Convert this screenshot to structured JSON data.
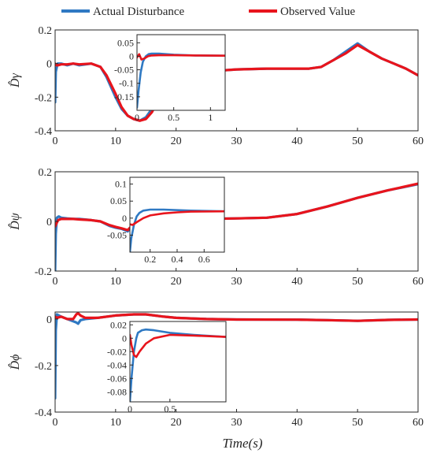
{
  "legend": [
    {
      "label": "Actual Disturbance",
      "color": "#2f79c3"
    },
    {
      "label": "Observed Value",
      "color": "#e8141c"
    }
  ],
  "xlabel": "Time(s)",
  "chart_data": [
    {
      "type": "line",
      "ylabel": "D̂γ",
      "xlim": [
        0,
        60
      ],
      "ylim": [
        -0.4,
        0.2
      ],
      "xticks": [
        0,
        10,
        20,
        30,
        40,
        50,
        60
      ],
      "yticks": [
        -0.4,
        -0.2,
        0,
        0.2
      ],
      "ytick_labels": [
        "-0.4",
        "-0.2",
        "0",
        "0.2"
      ],
      "series": [
        {
          "name": "Actual Disturbance",
          "color": "#2f79c3",
          "x": [
            0,
            0.1,
            0.4,
            1,
            2,
            3,
            4,
            6,
            7.5,
            8.5,
            10,
            11,
            12,
            13,
            14,
            15,
            16,
            17,
            18,
            20,
            22,
            25,
            28,
            30,
            35,
            40,
            42,
            44,
            46,
            48,
            50,
            52,
            54,
            56,
            58,
            60
          ],
          "y": [
            -0.23,
            -0.05,
            0,
            0,
            -0.01,
            0.0,
            -0.01,
            0.0,
            -0.02,
            -0.08,
            -0.2,
            -0.27,
            -0.31,
            -0.33,
            -0.34,
            -0.32,
            -0.27,
            -0.2,
            -0.14,
            -0.09,
            -0.05,
            -0.04,
            -0.04,
            -0.035,
            -0.03,
            -0.03,
            -0.03,
            -0.02,
            0.02,
            0.07,
            0.12,
            0.07,
            0.03,
            0.0,
            -0.03,
            -0.07
          ]
        },
        {
          "name": "Observed Value",
          "color": "#e8141c",
          "x": [
            0,
            0.2,
            0.5,
            1,
            2,
            3,
            4,
            6,
            7.5,
            8.5,
            10,
            11,
            12,
            13,
            14,
            15,
            16,
            17,
            18,
            20,
            22,
            25,
            28,
            30,
            35,
            40,
            42,
            44,
            46,
            48,
            50,
            52,
            54,
            56,
            58,
            60
          ],
          "y": [
            0.0,
            -0.01,
            -0.01,
            -0.005,
            -0.005,
            0.0,
            -0.005,
            0.0,
            -0.02,
            -0.07,
            -0.18,
            -0.26,
            -0.31,
            -0.33,
            -0.34,
            -0.33,
            -0.29,
            -0.22,
            -0.15,
            -0.09,
            -0.05,
            -0.04,
            -0.04,
            -0.035,
            -0.03,
            -0.03,
            -0.03,
            -0.02,
            0.02,
            0.06,
            0.11,
            0.07,
            0.03,
            0.0,
            -0.03,
            -0.07
          ]
        }
      ],
      "inset": {
        "xlim": [
          0,
          1.2
        ],
        "ylim": [
          -0.2,
          0.08
        ],
        "xticks": [
          0,
          0.5,
          1
        ],
        "xtick_labels": [
          "0",
          "0.5",
          "1"
        ],
        "yticks": [
          -0.15,
          -0.1,
          -0.05,
          0,
          0.05
        ],
        "ytick_labels": [
          "-0.15",
          "-0.1",
          "-0.05",
          "0",
          "0.05"
        ],
        "series": [
          {
            "name": "Actual Disturbance",
            "color": "#2f79c3",
            "x": [
              0,
              0.02,
              0.05,
              0.08,
              0.12,
              0.16,
              0.2,
              0.3,
              0.5,
              0.8,
              1.2
            ],
            "y": [
              -0.19,
              -0.13,
              -0.06,
              -0.02,
              0.0,
              0.008,
              0.01,
              0.01,
              0.006,
              0.003,
              0.002
            ]
          },
          {
            "name": "Observed Value",
            "color": "#e8141c",
            "x": [
              0,
              0.03,
              0.06,
              0.1,
              0.15,
              0.2,
              0.3,
              0.5,
              0.8,
              1.2
            ],
            "y": [
              -0.005,
              0.008,
              -0.012,
              -0.008,
              0.0,
              0.003,
              0.004,
              0.004,
              0.003,
              0.002
            ]
          }
        ]
      }
    },
    {
      "type": "line",
      "ylabel": "D̂ψ",
      "xlim": [
        0,
        60
      ],
      "ylim": [
        -0.2,
        0.2
      ],
      "xticks": [
        0,
        10,
        20,
        30,
        40,
        50,
        60
      ],
      "yticks": [
        -0.2,
        0,
        0.2
      ],
      "ytick_labels": [
        "-0.2",
        "0",
        "0.2"
      ],
      "series": [
        {
          "name": "Actual Disturbance",
          "color": "#2f79c3",
          "x": [
            0,
            0.1,
            0.3,
            0.6,
            1,
            2,
            3,
            4,
            6,
            7.5,
            9,
            10,
            11,
            12,
            13,
            14,
            16,
            20,
            25,
            30,
            35,
            40,
            45,
            50,
            55,
            60
          ],
          "y": [
            -0.2,
            -0.05,
            0.015,
            0.02,
            0.015,
            0.012,
            0.01,
            0.01,
            0.005,
            0.0,
            -0.018,
            -0.025,
            -0.03,
            -0.04,
            -0.01,
            0.005,
            0.008,
            0.01,
            0.01,
            0.012,
            0.015,
            0.03,
            0.06,
            0.095,
            0.125,
            0.15
          ]
        },
        {
          "name": "Observed Value",
          "color": "#e8141c",
          "x": [
            0,
            0.2,
            0.5,
            1,
            2,
            3,
            4,
            6,
            7.5,
            9,
            10,
            11,
            12,
            13,
            14,
            16,
            20,
            25,
            30,
            35,
            40,
            45,
            50,
            55,
            60
          ],
          "y": [
            -0.02,
            -0.01,
            0.005,
            0.01,
            0.01,
            0.01,
            0.008,
            0.005,
            0.0,
            -0.015,
            -0.022,
            -0.028,
            -0.035,
            -0.01,
            0.005,
            0.008,
            0.01,
            0.01,
            0.012,
            0.015,
            0.03,
            0.06,
            0.095,
            0.125,
            0.152
          ]
        }
      ],
      "inset": {
        "xlim": [
          0.05,
          0.75
        ],
        "ylim": [
          -0.1,
          0.12
        ],
        "xticks": [
          0.2,
          0.4,
          0.6
        ],
        "xtick_labels": [
          "0.2",
          "0.4",
          "0.6"
        ],
        "yticks": [
          -0.05,
          0,
          0.05,
          0.1
        ],
        "ytick_labels": [
          "-0.05",
          "0",
          "0.05",
          "0.1"
        ],
        "series": [
          {
            "name": "Actual Disturbance",
            "color": "#2f79c3",
            "x": [
              0.05,
              0.06,
              0.08,
              0.1,
              0.12,
              0.15,
              0.2,
              0.3,
              0.5,
              0.75
            ],
            "y": [
              -0.1,
              -0.06,
              -0.02,
              0.005,
              0.015,
              0.022,
              0.025,
              0.025,
              0.022,
              0.02
            ]
          },
          {
            "name": "Observed Value",
            "color": "#e8141c",
            "x": [
              0.05,
              0.07,
              0.1,
              0.15,
              0.2,
              0.3,
              0.4,
              0.5,
              0.75
            ],
            "y": [
              -0.018,
              -0.02,
              -0.012,
              0.0,
              0.008,
              0.014,
              0.017,
              0.019,
              0.02
            ]
          }
        ]
      }
    },
    {
      "type": "line",
      "ylabel": "D̂ϕ",
      "xlim": [
        0,
        60
      ],
      "ylim": [
        -0.4,
        0.03
      ],
      "xticks": [
        0,
        10,
        20,
        30,
        40,
        50,
        60
      ],
      "yticks": [
        -0.4,
        -0.2,
        0
      ],
      "ytick_labels": [
        "-0.4",
        "-0.2",
        "0"
      ],
      "series": [
        {
          "name": "Actual Disturbance",
          "color": "#2f79c3",
          "x": [
            0,
            0.1,
            0.3,
            1,
            2,
            3,
            3.5,
            3.8,
            4.2,
            5,
            7,
            10,
            13,
            15,
            18,
            20,
            25,
            30,
            40,
            45,
            50,
            55,
            60
          ],
          "y": [
            -0.34,
            -0.05,
            0.02,
            0.01,
            0.0,
            -0.01,
            -0.015,
            -0.02,
            -0.005,
            0.0,
            0.005,
            0.015,
            0.02,
            0.02,
            0.01,
            0.005,
            0.0,
            -0.002,
            -0.003,
            -0.005,
            -0.008,
            -0.004,
            -0.002
          ]
        },
        {
          "name": "Observed Value",
          "color": "#e8141c",
          "x": [
            0,
            0.3,
            1,
            2,
            3,
            3.5,
            3.8,
            4.2,
            5,
            7,
            10,
            13,
            15,
            18,
            20,
            25,
            30,
            40,
            45,
            50,
            55,
            60
          ],
          "y": [
            0.01,
            0.005,
            0.01,
            0.0,
            0.0,
            0.02,
            0.025,
            0.015,
            0.005,
            0.005,
            0.015,
            0.02,
            0.02,
            0.01,
            0.005,
            0.0,
            -0.002,
            -0.003,
            -0.005,
            -0.008,
            -0.004,
            -0.002
          ]
        }
      ],
      "inset": {
        "xlim": [
          0,
          1.2
        ],
        "ylim": [
          -0.095,
          0.025
        ],
        "xticks": [
          0,
          0.5
        ],
        "xtick_labels": [
          "0",
          "0.5"
        ],
        "yticks": [
          -0.08,
          -0.06,
          -0.04,
          -0.02,
          0,
          0.02
        ],
        "ytick_labels": [
          "-0.08",
          "-0.06",
          "-0.04",
          "-0.02",
          "0",
          "0.02"
        ],
        "series": [
          {
            "name": "Actual Disturbance",
            "color": "#2f79c3",
            "x": [
              0,
              0.02,
              0.05,
              0.08,
              0.1,
              0.15,
              0.2,
              0.3,
              0.5,
              0.8,
              1.2
            ],
            "y": [
              -0.095,
              -0.06,
              -0.02,
              0.0,
              0.008,
              0.012,
              0.013,
              0.012,
              0.008,
              0.005,
              0.002
            ]
          },
          {
            "name": "Observed Value",
            "color": "#e8141c",
            "x": [
              0,
              0.02,
              0.05,
              0.08,
              0.12,
              0.2,
              0.3,
              0.5,
              0.8,
              1.2
            ],
            "y": [
              0.005,
              -0.01,
              -0.025,
              -0.028,
              -0.02,
              -0.008,
              0.0,
              0.005,
              0.004,
              0.002
            ]
          }
        ]
      }
    }
  ]
}
